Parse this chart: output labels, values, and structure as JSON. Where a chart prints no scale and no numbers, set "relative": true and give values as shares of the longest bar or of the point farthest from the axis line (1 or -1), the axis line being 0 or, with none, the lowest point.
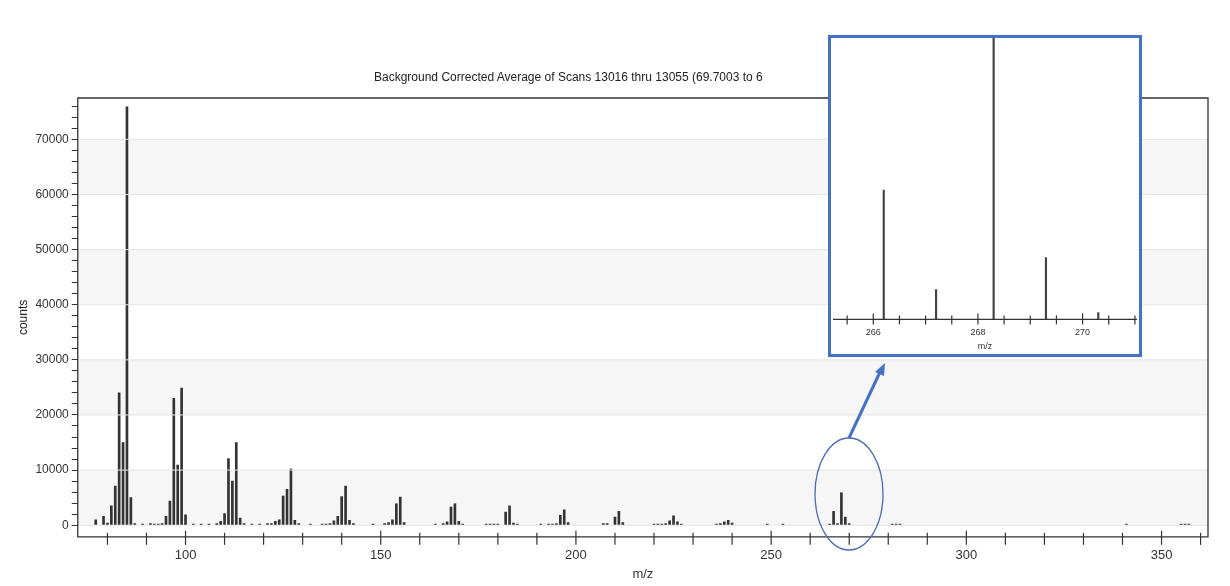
{
  "chart_data": [
    {
      "type": "bar",
      "title": "Background Corrected Average of Scans 13016 thru 13055 (69.7003 to 6",
      "xlabel": "m/z",
      "ylabel": "counts",
      "color": "#333333",
      "grid": "y",
      "x": [
        77,
        79,
        80,
        81,
        82,
        83,
        84,
        85,
        86,
        87,
        89,
        91,
        92,
        93,
        94,
        95,
        96,
        97,
        98,
        99,
        100,
        102,
        104,
        106,
        108,
        109,
        110,
        111,
        112,
        113,
        114,
        115,
        117,
        119,
        121,
        122,
        123,
        124,
        125,
        126,
        127,
        128,
        129,
        132,
        135,
        136,
        137,
        138,
        139,
        140,
        141,
        142,
        143,
        148,
        151,
        152,
        153,
        154,
        155,
        156,
        164,
        166,
        167,
        168,
        169,
        170,
        171,
        177,
        178,
        179,
        180,
        182,
        183,
        184,
        185,
        191,
        193,
        194,
        195,
        196,
        197,
        198,
        207,
        208,
        210,
        211,
        212,
        220,
        221,
        222,
        223,
        224,
        225,
        226,
        227,
        236,
        237,
        238,
        239,
        240,
        249,
        253,
        265,
        266,
        267,
        268,
        269,
        270,
        281,
        282,
        283,
        341,
        355,
        356,
        357
      ],
      "values": [
        1000,
        1600,
        400,
        3500,
        7100,
        24000,
        15000,
        75900,
        5000,
        300,
        200,
        300,
        200,
        200,
        300,
        1600,
        4400,
        23000,
        10900,
        24900,
        1900,
        200,
        200,
        200,
        300,
        700,
        2100,
        12100,
        8000,
        15000,
        1300,
        300,
        200,
        200,
        300,
        300,
        700,
        1000,
        5300,
        6500,
        10200,
        900,
        300,
        200,
        200,
        200,
        300,
        800,
        1600,
        5200,
        7100,
        900,
        300,
        200,
        300,
        500,
        1000,
        3900,
        5100,
        500,
        200,
        300,
        600,
        3300,
        3900,
        700,
        200,
        200,
        200,
        200,
        200,
        2400,
        3500,
        400,
        200,
        200,
        200,
        200,
        300,
        1800,
        2800,
        500,
        300,
        300,
        1500,
        2500,
        500,
        200,
        200,
        200,
        300,
        800,
        1700,
        600,
        200,
        200,
        300,
        600,
        900,
        400,
        200,
        200,
        200,
        2500,
        300,
        5900,
        1500,
        300,
        200,
        200,
        200,
        200,
        200,
        200,
        200
      ],
      "xlim": [
        72.4,
        361.9
      ],
      "ylim": [
        -2100,
        77500
      ],
      "xticks": [
        {
          "value": 80,
          "label": null
        },
        {
          "value": 90,
          "label": null
        },
        100,
        {
          "value": 110,
          "label": null
        },
        {
          "value": 120,
          "label": null
        },
        {
          "value": 130,
          "label": null
        },
        {
          "value": 140,
          "label": null
        },
        150,
        {
          "value": 160,
          "label": null
        },
        {
          "value": 170,
          "label": null
        },
        {
          "value": 180,
          "label": null
        },
        {
          "value": 190,
          "label": null
        },
        200,
        {
          "value": 210,
          "label": null
        },
        {
          "value": 220,
          "label": null
        },
        {
          "value": 230,
          "label": null
        },
        {
          "value": 240,
          "label": null
        },
        250,
        {
          "value": 260,
          "label": null
        },
        {
          "value": 270,
          "label": null
        },
        {
          "value": 280,
          "label": null
        },
        {
          "value": 290,
          "label": null
        },
        300,
        {
          "value": 310,
          "label": null
        },
        {
          "value": 320,
          "label": null
        },
        {
          "value": 330,
          "label": null
        },
        {
          "value": 340,
          "label": null
        },
        350,
        {
          "value": 360,
          "label": null
        }
      ],
      "yticks": [
        0,
        {
          "value": 2000,
          "label": null
        },
        {
          "value": 4000,
          "label": null
        },
        {
          "value": 6000,
          "label": null
        },
        {
          "value": 8000,
          "label": null
        },
        10000,
        {
          "value": 12000,
          "label": null
        },
        {
          "value": 14000,
          "label": null
        },
        {
          "value": 16000,
          "label": null
        },
        {
          "value": 18000,
          "label": null
        },
        20000,
        {
          "value": 22000,
          "label": null
        },
        {
          "value": 24000,
          "label": null
        },
        {
          "value": 26000,
          "label": null
        },
        {
          "value": 28000,
          "label": null
        },
        30000,
        {
          "value": 32000,
          "label": null
        },
        {
          "value": 34000,
          "label": null
        },
        {
          "value": 36000,
          "label": null
        },
        {
          "value": 38000,
          "label": null
        },
        40000,
        {
          "value": 42000,
          "label": null
        },
        {
          "value": 44000,
          "label": null
        },
        {
          "value": 46000,
          "label": null
        },
        {
          "value": 48000,
          "label": null
        },
        50000,
        {
          "value": 52000,
          "label": null
        },
        {
          "value": 54000,
          "label": null
        },
        {
          "value": 56000,
          "label": null
        },
        {
          "value": 58000,
          "label": null
        },
        60000,
        {
          "value": 62000,
          "label": null
        },
        {
          "value": 64000,
          "label": null
        },
        {
          "value": 66000,
          "label": null
        },
        {
          "value": 68000,
          "label": null
        },
        70000,
        {
          "value": 72000,
          "label": null
        },
        {
          "value": 74000,
          "label": null
        },
        {
          "value": 76000,
          "label": null
        }
      ]
    },
    {
      "type": "bar",
      "xlabel": "m/z",
      "color": "#444444",
      "relative": true,
      "x": [
        266.2,
        267.2,
        268.3,
        269.3,
        270.3
      ],
      "values": [
        0.46,
        0.106,
        1,
        0.22,
        0.024
      ],
      "xlim": [
        265.23,
        271.04
      ],
      "xticks": [
        {
          "value": 265.5,
          "label": null
        },
        266,
        {
          "value": 266.5,
          "label": null
        },
        {
          "value": 267,
          "label": null
        },
        {
          "value": 267.5,
          "label": null
        },
        268,
        {
          "value": 268.5,
          "label": null
        },
        {
          "value": 269,
          "label": null
        },
        {
          "value": 269.5,
          "label": null
        },
        270,
        {
          "value": 270.5,
          "label": null
        },
        {
          "value": 271,
          "label": null
        }
      ]
    }
  ]
}
